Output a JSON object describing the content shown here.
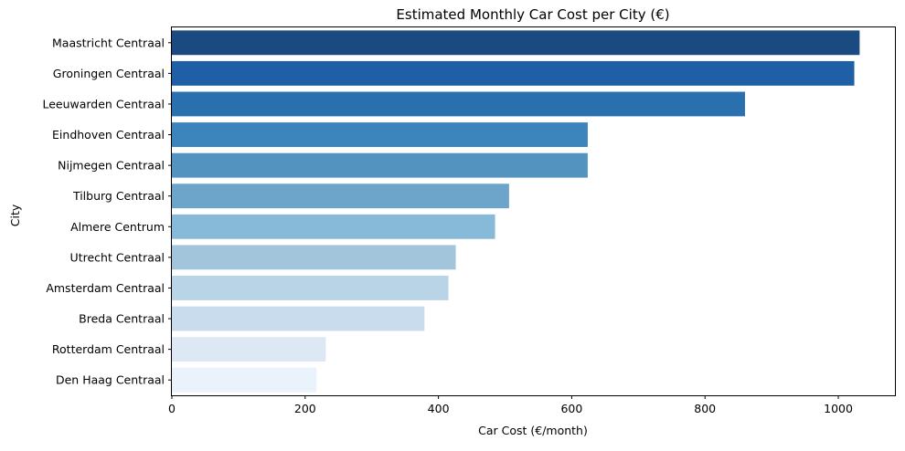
{
  "chart_data": {
    "type": "bar",
    "orientation": "horizontal",
    "title": "Estimated Monthly Car Cost per City (€)",
    "xlabel": "Car Cost (€/month)",
    "ylabel": "City",
    "xlim": [
      0,
      1085
    ],
    "xticks": [
      0,
      200,
      400,
      600,
      800,
      1000
    ],
    "grid": false,
    "legend": "none",
    "categories": [
      "Maastricht Centraal",
      "Groningen Centraal",
      "Leeuwarden Centraal",
      "Eindhoven Centraal",
      "Nijmegen Centraal",
      "Tilburg Centraal",
      "Almere Centrum",
      "Utrecht Centraal",
      "Amsterdam Centraal",
      "Breda Centraal",
      "Rotterdam Centraal",
      "Den Haag Centraal"
    ],
    "values": [
      1032,
      1024,
      860,
      624,
      624,
      506,
      485,
      426,
      415,
      379,
      231,
      217
    ],
    "colors": [
      "#1a4a80",
      "#1f5fa5",
      "#2a70ae",
      "#3c84bc",
      "#5393c0",
      "#6ca5c9",
      "#87b9d8",
      "#a2c5dc",
      "#b9d4e7",
      "#c9dcee",
      "#dde8f4",
      "#eaf2fb"
    ]
  }
}
